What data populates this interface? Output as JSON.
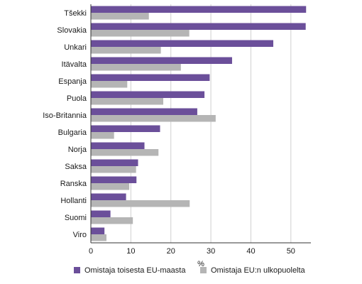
{
  "chart_data": {
    "type": "bar",
    "orientation": "horizontal",
    "categories": [
      "Tšekki",
      "Slovakia",
      "Unkari",
      "Itävalta",
      "Espanja",
      "Puola",
      "Iso-Britannia",
      "Bulgaria",
      "Norja",
      "Saksa",
      "Ranska",
      "Hollanti",
      "Suomi",
      "Viro"
    ],
    "series": [
      {
        "name": "Omistaja toisesta EU-maasta",
        "color": "#6b4f9a",
        "values": [
          53.8,
          53.7,
          45.6,
          35.3,
          29.7,
          28.4,
          26.6,
          17.3,
          13.4,
          11.8,
          11.4,
          8.8,
          4.9,
          3.4
        ]
      },
      {
        "name": "Omistaja EU:n ulkopuolelta",
        "color": "#b5b5b5",
        "values": [
          14.5,
          24.6,
          17.5,
          22.5,
          9.1,
          18.1,
          31.2,
          5.8,
          16.9,
          11.3,
          9.6,
          24.7,
          10.5,
          3.9
        ]
      }
    ],
    "xlabel": "%",
    "ylabel": "",
    "title": "",
    "xlim": [
      0,
      55
    ],
    "xticks": [
      0,
      10,
      20,
      30,
      40,
      50
    ],
    "grid": true,
    "legend_position": "bottom"
  }
}
